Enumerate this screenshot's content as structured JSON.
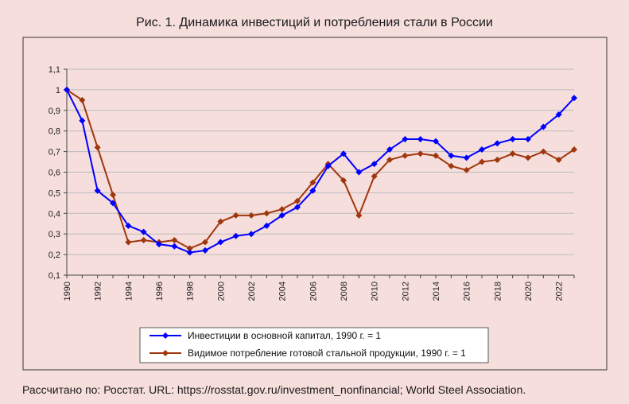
{
  "chart_data": {
    "type": "line",
    "title": "Рис. 1. Динамика инвестиций и потребления стали в России",
    "xlabel": "",
    "ylabel": "",
    "ylim": [
      0.1,
      1.1
    ],
    "yticks": [
      "0,1",
      "0,2",
      "0,3",
      "0,4",
      "0,5",
      "0,6",
      "0,7",
      "0,8",
      "0,9",
      "1",
      "1,1"
    ],
    "xticks": [
      "1990",
      "1992",
      "1994",
      "1996",
      "1998",
      "2000",
      "2002",
      "2004",
      "2006",
      "2008",
      "2010",
      "2012",
      "2014",
      "2016",
      "2018",
      "2020",
      "2022"
    ],
    "grid": "horizontal",
    "legend": "bottom",
    "x": [
      1990,
      1991,
      1992,
      1993,
      1994,
      1995,
      1996,
      1997,
      1998,
      1999,
      2000,
      2001,
      2002,
      2003,
      2004,
      2005,
      2006,
      2007,
      2008,
      2009,
      2010,
      2011,
      2012,
      2013,
      2014,
      2015,
      2016,
      2017,
      2018,
      2019,
      2020,
      2021,
      2022,
      2023
    ],
    "series": [
      {
        "name": "Инвестиции в основной капитал, 1990 г. = 1",
        "color": "#0000ff",
        "values": [
          1.0,
          0.85,
          0.51,
          0.45,
          0.34,
          0.31,
          0.25,
          0.24,
          0.21,
          0.22,
          0.26,
          0.29,
          0.3,
          0.34,
          0.39,
          0.43,
          0.51,
          0.63,
          0.69,
          0.6,
          0.64,
          0.71,
          0.76,
          0.76,
          0.75,
          0.68,
          0.67,
          0.71,
          0.74,
          0.76,
          0.76,
          0.82,
          0.88,
          0.96
        ]
      },
      {
        "name": "Видимое потребление готовой стальной продукции, 1990 г. = 1",
        "color": "#a0360c",
        "values": [
          1.0,
          0.95,
          0.72,
          0.49,
          0.26,
          0.27,
          0.26,
          0.27,
          0.23,
          0.26,
          0.36,
          0.39,
          0.39,
          0.4,
          0.42,
          0.46,
          0.55,
          0.64,
          0.56,
          0.39,
          0.58,
          0.66,
          0.68,
          0.69,
          0.68,
          0.63,
          0.61,
          0.65,
          0.66,
          0.69,
          0.67,
          0.7,
          0.66,
          0.71
        ]
      }
    ]
  },
  "source_note": "Рассчитано по: Росстат. URL: https://rosstat.gov.ru/investment_nonfinancial; World Steel Association."
}
